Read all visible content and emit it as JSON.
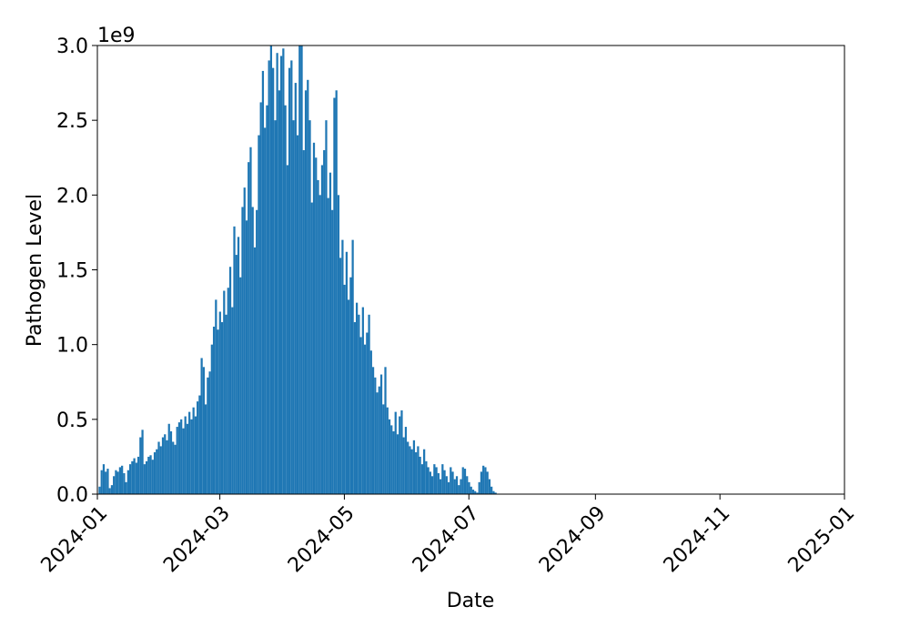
{
  "chart_data": {
    "type": "bar",
    "color": "#1f77b4",
    "x_label": "Date",
    "y_label": "Pathogen Level",
    "y_offset_label": "1e9",
    "xlim": [
      "2024-01",
      "2025-01"
    ],
    "xticks": [
      "2024-01",
      "2024-03",
      "2024-05",
      "2024-07",
      "2024-09",
      "2024-11",
      "2025-01"
    ],
    "ylim": [
      0,
      3
    ],
    "yticks": [
      {
        "value": 0,
        "label": "0.0"
      },
      0.5,
      {
        "value": 1,
        "label": "1.0"
      },
      1.5,
      {
        "value": 2,
        "label": "2.0"
      },
      2.5,
      {
        "value": 3,
        "label": "3.0"
      }
    ],
    "x": [
      "2024-01-02",
      "2024-01-03",
      "2024-01-04",
      "2024-01-05",
      "2024-01-06",
      "2024-01-07",
      "2024-01-08",
      "2024-01-09",
      "2024-01-10",
      "2024-01-11",
      "2024-01-12",
      "2024-01-13",
      "2024-01-14",
      "2024-01-15",
      "2024-01-16",
      "2024-01-17",
      "2024-01-18",
      "2024-01-19",
      "2024-01-20",
      "2024-01-21",
      "2024-01-22",
      "2024-01-23",
      "2024-01-24",
      "2024-01-25",
      "2024-01-26",
      "2024-01-27",
      "2024-01-28",
      "2024-01-29",
      "2024-01-30",
      "2024-01-31",
      "2024-02-01",
      "2024-02-02",
      "2024-02-03",
      "2024-02-04",
      "2024-02-05",
      "2024-02-06",
      "2024-02-07",
      "2024-02-08",
      "2024-02-09",
      "2024-02-10",
      "2024-02-11",
      "2024-02-12",
      "2024-02-13",
      "2024-02-14",
      "2024-02-15",
      "2024-02-16",
      "2024-02-17",
      "2024-02-18",
      "2024-02-19",
      "2024-02-20",
      "2024-02-21",
      "2024-02-22",
      "2024-02-23",
      "2024-02-24",
      "2024-02-25",
      "2024-02-26",
      "2024-02-27",
      "2024-02-28",
      "2024-02-29",
      "2024-03-01",
      "2024-03-02",
      "2024-03-03",
      "2024-03-04",
      "2024-03-05",
      "2024-03-06",
      "2024-03-07",
      "2024-03-08",
      "2024-03-09",
      "2024-03-10",
      "2024-03-11",
      "2024-03-12",
      "2024-03-13",
      "2024-03-14",
      "2024-03-15",
      "2024-03-16",
      "2024-03-17",
      "2024-03-18",
      "2024-03-19",
      "2024-03-20",
      "2024-03-21",
      "2024-03-22",
      "2024-03-23",
      "2024-03-24",
      "2024-03-25",
      "2024-03-26",
      "2024-03-27",
      "2024-03-28",
      "2024-03-29",
      "2024-03-30",
      "2024-03-31",
      "2024-04-01",
      "2024-04-02",
      "2024-04-03",
      "2024-04-04",
      "2024-04-05",
      "2024-04-06",
      "2024-04-07",
      "2024-04-08",
      "2024-04-09",
      "2024-04-10",
      "2024-04-11",
      "2024-04-12",
      "2024-04-13",
      "2024-04-14",
      "2024-04-15",
      "2024-04-16",
      "2024-04-17",
      "2024-04-18",
      "2024-04-19",
      "2024-04-20",
      "2024-04-21",
      "2024-04-22",
      "2024-04-23",
      "2024-04-24",
      "2024-04-25",
      "2024-04-26",
      "2024-04-27",
      "2024-04-28",
      "2024-04-29",
      "2024-04-30",
      "2024-05-01",
      "2024-05-02",
      "2024-05-03",
      "2024-05-04",
      "2024-05-05",
      "2024-05-06",
      "2024-05-07",
      "2024-05-08",
      "2024-05-09",
      "2024-05-10",
      "2024-05-11",
      "2024-05-12",
      "2024-05-13",
      "2024-05-14",
      "2024-05-15",
      "2024-05-16",
      "2024-05-17",
      "2024-05-18",
      "2024-05-19",
      "2024-05-20",
      "2024-05-21",
      "2024-05-22",
      "2024-05-23",
      "2024-05-24",
      "2024-05-25",
      "2024-05-26",
      "2024-05-27",
      "2024-05-28",
      "2024-05-29",
      "2024-05-30",
      "2024-05-31",
      "2024-06-01",
      "2024-06-02",
      "2024-06-03",
      "2024-06-04",
      "2024-06-05",
      "2024-06-06",
      "2024-06-07",
      "2024-06-08",
      "2024-06-09",
      "2024-06-10",
      "2024-06-11",
      "2024-06-12",
      "2024-06-13",
      "2024-06-14",
      "2024-06-15",
      "2024-06-16",
      "2024-06-17",
      "2024-06-18",
      "2024-06-19",
      "2024-06-20",
      "2024-06-21",
      "2024-06-22",
      "2024-06-23",
      "2024-06-24",
      "2024-06-25",
      "2024-06-26",
      "2024-06-27",
      "2024-06-28",
      "2024-06-29",
      "2024-06-30",
      "2024-07-01",
      "2024-07-02",
      "2024-07-03",
      "2024-07-04",
      "2024-07-05",
      "2024-07-06",
      "2024-07-07",
      "2024-07-08",
      "2024-07-09",
      "2024-07-10",
      "2024-07-11",
      "2024-07-12",
      "2024-07-13",
      "2024-07-14"
    ],
    "values": [
      0.05,
      0.16,
      0.2,
      0.15,
      0.17,
      0.04,
      0.06,
      0.12,
      0.16,
      0.15,
      0.18,
      0.19,
      0.14,
      0.08,
      0.16,
      0.2,
      0.22,
      0.24,
      0.21,
      0.25,
      0.38,
      0.43,
      0.2,
      0.22,
      0.25,
      0.26,
      0.23,
      0.28,
      0.3,
      0.35,
      0.32,
      0.38,
      0.4,
      0.36,
      0.47,
      0.42,
      0.35,
      0.33,
      0.45,
      0.48,
      0.5,
      0.44,
      0.52,
      0.47,
      0.55,
      0.5,
      0.58,
      0.52,
      0.62,
      0.66,
      0.91,
      0.85,
      0.6,
      0.78,
      0.82,
      1.0,
      1.12,
      1.3,
      1.1,
      1.22,
      1.15,
      1.36,
      1.2,
      1.38,
      1.52,
      1.25,
      1.79,
      1.6,
      1.72,
      1.45,
      1.92,
      2.05,
      1.83,
      2.22,
      2.32,
      1.92,
      1.65,
      1.9,
      2.4,
      2.62,
      2.83,
      2.45,
      2.6,
      2.9,
      3.0,
      2.85,
      2.5,
      2.95,
      2.7,
      2.93,
      2.98,
      2.6,
      2.2,
      2.85,
      2.9,
      2.5,
      2.75,
      2.4,
      3.0,
      3.0,
      2.3,
      2.7,
      2.77,
      2.5,
      1.95,
      2.35,
      2.25,
      2.1,
      2.0,
      2.2,
      2.3,
      2.5,
      1.98,
      2.15,
      1.9,
      2.65,
      2.7,
      2.0,
      1.58,
      1.7,
      1.4,
      1.62,
      1.3,
      1.45,
      1.7,
      1.15,
      1.28,
      1.2,
      1.05,
      1.25,
      1.0,
      1.08,
      1.2,
      0.96,
      0.85,
      0.78,
      0.68,
      0.72,
      0.8,
      0.6,
      0.85,
      0.58,
      0.5,
      0.46,
      0.42,
      0.55,
      0.4,
      0.52,
      0.56,
      0.38,
      0.45,
      0.35,
      0.32,
      0.3,
      0.36,
      0.28,
      0.32,
      0.25,
      0.2,
      0.3,
      0.22,
      0.18,
      0.15,
      0.12,
      0.2,
      0.18,
      0.14,
      0.1,
      0.2,
      0.16,
      0.12,
      0.08,
      0.18,
      0.15,
      0.1,
      0.12,
      0.06,
      0.1,
      0.18,
      0.17,
      0.12,
      0.08,
      0.05,
      0.03,
      0.02,
      0.01,
      0.08,
      0.15,
      0.19,
      0.18,
      0.15,
      0.1,
      0.05,
      0.02,
      0.01
    ]
  }
}
